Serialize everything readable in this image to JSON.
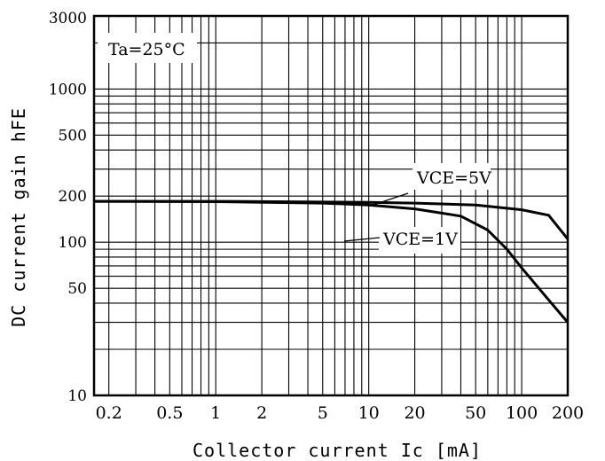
{
  "chart_data": {
    "type": "line",
    "title": "",
    "xlabel": "Collector current Ic [mA]",
    "ylabel": "DC current gain hFE",
    "x_scale": "log",
    "y_scale": "log",
    "xlim": [
      0.16,
      200
    ],
    "ylim": [
      10,
      3000
    ],
    "x_tick_labels": [
      "0.2",
      "0.5",
      "1",
      "2",
      "5",
      "10",
      "20",
      "50",
      "100",
      "200"
    ],
    "x_tick_values": [
      0.2,
      0.5,
      1,
      2,
      5,
      10,
      20,
      50,
      100,
      200
    ],
    "y_tick_labels": [
      "10",
      "50",
      "100",
      "200",
      "500",
      "1000",
      "3000"
    ],
    "y_tick_values": [
      10,
      50,
      100,
      200,
      500,
      1000,
      3000
    ],
    "grid": true,
    "annotation": "Ta=25°C",
    "series": [
      {
        "name": "VCE=5V",
        "x": [
          0.16,
          1,
          5,
          10,
          20,
          50,
          100,
          150,
          200
        ],
        "y": [
          185,
          185,
          183,
          182,
          180,
          175,
          163,
          150,
          105
        ]
      },
      {
        "name": "VCE=1V",
        "x": [
          0.16,
          1,
          5,
          10,
          20,
          40,
          60,
          80,
          100,
          150,
          200
        ],
        "y": [
          185,
          184,
          180,
          175,
          165,
          148,
          120,
          90,
          68,
          42,
          30
        ]
      }
    ]
  }
}
